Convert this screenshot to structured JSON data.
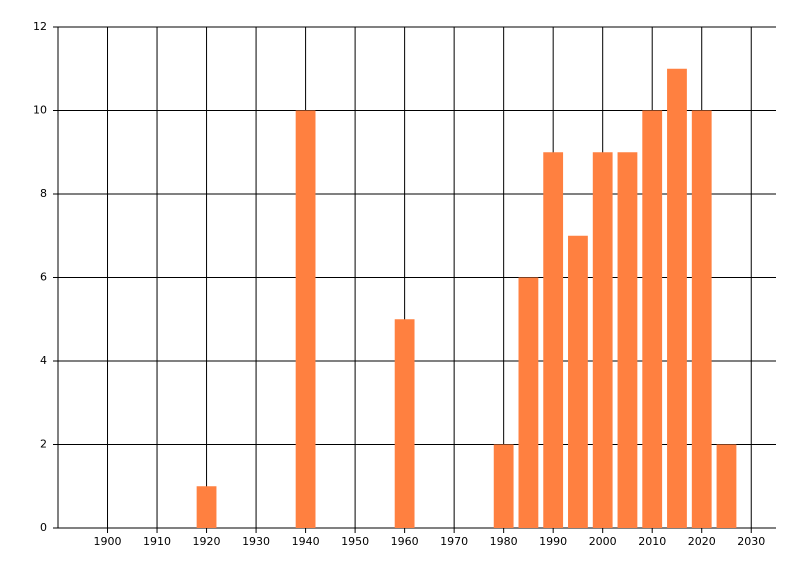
{
  "chart_data": {
    "type": "bar",
    "x": [
      1920,
      1940,
      1960,
      1980,
      1985,
      1990,
      1995,
      2000,
      2005,
      2010,
      2015,
      2020,
      2025
    ],
    "values": [
      1,
      10,
      5,
      2,
      6,
      9,
      7,
      9,
      9,
      10,
      11,
      10,
      2
    ],
    "color": "#ff8040",
    "xlim": [
      1890,
      2035
    ],
    "xticks": [
      1900,
      1910,
      1920,
      1930,
      1940,
      1950,
      1960,
      1970,
      1980,
      1990,
      2000,
      2010,
      2020,
      2030
    ],
    "ylim": [
      0,
      12
    ],
    "yticks": [
      0,
      2,
      4,
      6,
      8,
      10,
      12
    ],
    "grid": true
  }
}
